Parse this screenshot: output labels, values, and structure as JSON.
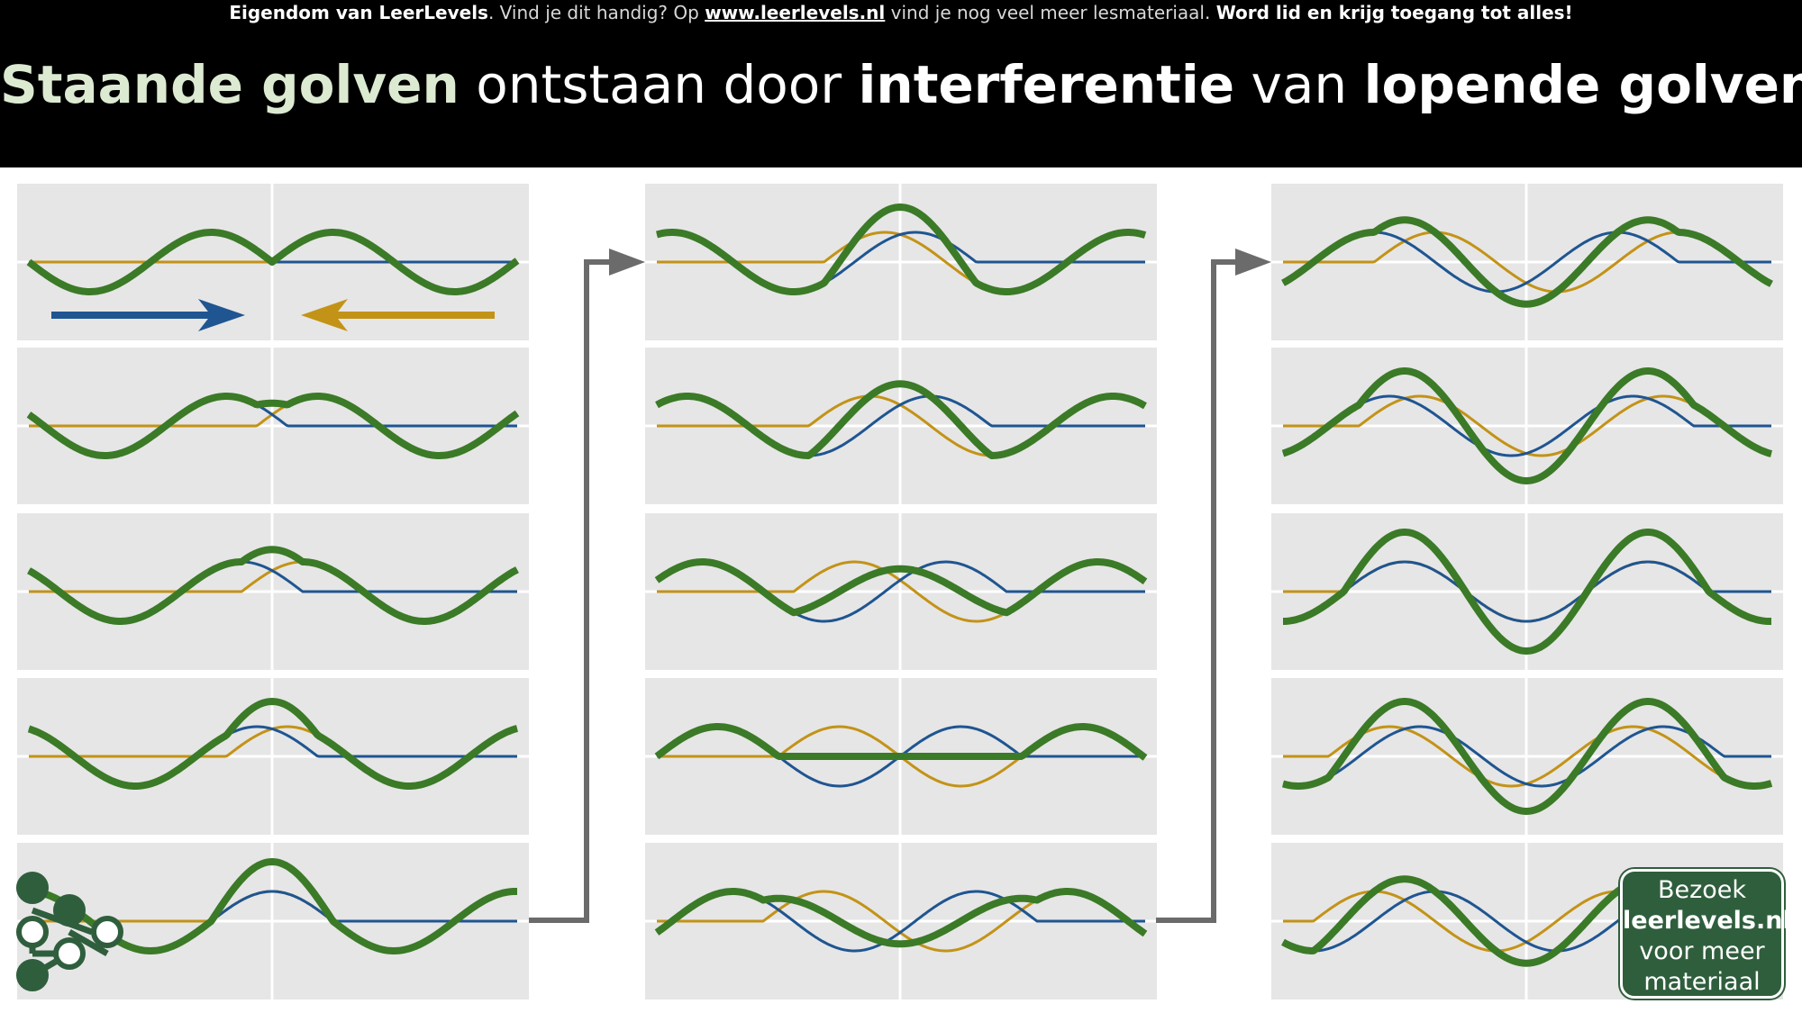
{
  "header": {
    "notice": [
      "Eigendom van LeerLevels",
      ". Vind je dit handig? Op ",
      "www.leerlevels.nl",
      " vind je nog veel meer lesmateriaal. ",
      "Word lid en krijg toegang tot alles!"
    ],
    "title": [
      "Staande golven",
      " ontstaan door ",
      "interferentie",
      " van ",
      "lopende golven"
    ]
  },
  "badge": {
    "lines": [
      "Bezoek",
      "leerlevels.nl",
      "voor meer",
      "materiaal"
    ]
  }
}
